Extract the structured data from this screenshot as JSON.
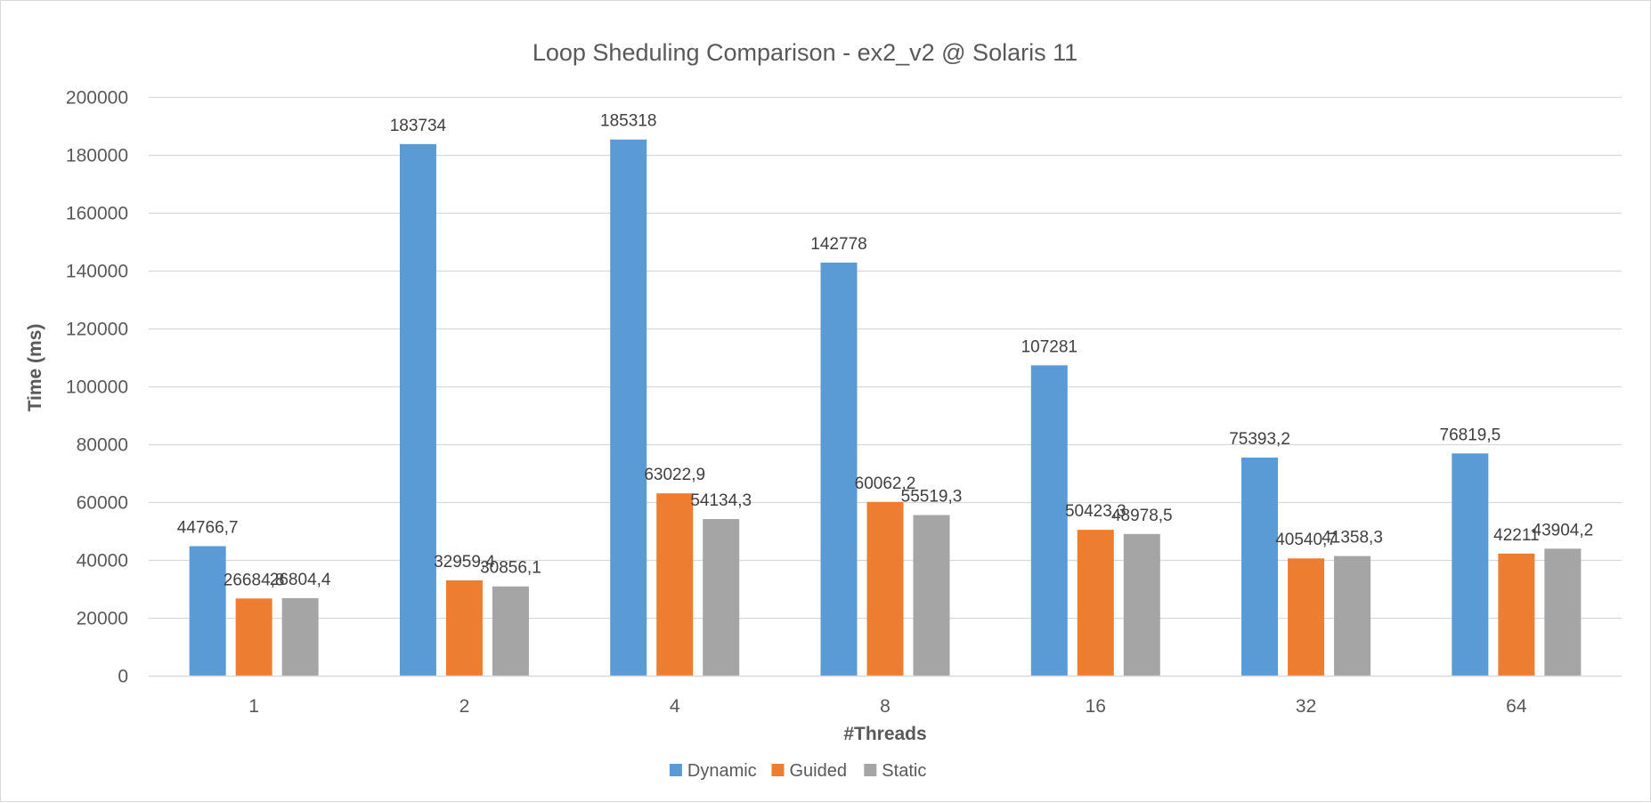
{
  "chart_data": {
    "type": "bar",
    "title": "Loop Sheduling Comparison - ex2_v2 @ Solaris 11",
    "xlabel": "#Threads",
    "ylabel": "Time (ms)",
    "ylim": [
      0,
      200000
    ],
    "yticks": [
      0,
      20000,
      40000,
      60000,
      80000,
      100000,
      120000,
      140000,
      160000,
      180000,
      200000
    ],
    "grid": true,
    "legend_position": "bottom",
    "categories": [
      "1",
      "2",
      "4",
      "8",
      "16",
      "32",
      "64"
    ],
    "series": [
      {
        "name": "Dynamic",
        "color": "#5b9bd5",
        "values": [
          44766.7,
          183734,
          185318,
          142778,
          107281,
          75393.2,
          76819.5
        ],
        "labels": [
          "44766,7",
          "183734",
          "185318",
          "142778",
          "107281",
          "75393,2",
          "76819,5"
        ]
      },
      {
        "name": "Guided",
        "color": "#ed7d31",
        "values": [
          26684.8,
          32959.4,
          63022.9,
          60062.2,
          50423.3,
          40540.7,
          42211
        ],
        "labels": [
          "26684,8",
          "32959,4",
          "63022,9",
          "60062,2",
          "50423,3",
          "40540,7",
          "42211"
        ]
      },
      {
        "name": "Static",
        "color": "#a5a5a5",
        "values": [
          26804.4,
          30856.1,
          54134.3,
          55519.3,
          48978.5,
          41358.3,
          43904.2
        ],
        "labels": [
          "26804,4",
          "30856,1",
          "54134,3",
          "55519,3",
          "48978,5",
          "41358,3",
          "43904,2"
        ]
      }
    ]
  }
}
